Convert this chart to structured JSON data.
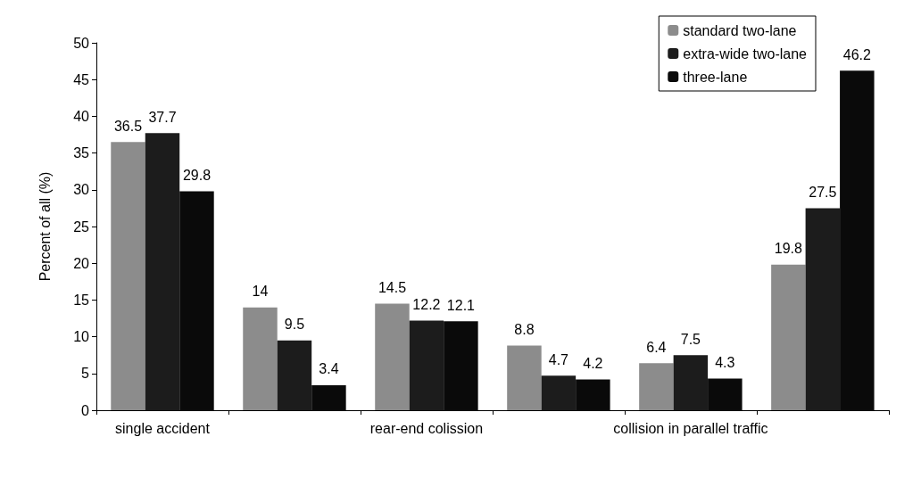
{
  "chart_data": {
    "type": "bar",
    "ylabel": "Percent of all (%)",
    "categories": [
      "single accident",
      null,
      "rear-end colission",
      null,
      "collision in parallel traffic",
      null
    ],
    "series": [
      {
        "name": "standard two-lane",
        "color": "#8c8c8c",
        "values": [
          36.5,
          14,
          14.5,
          8.8,
          6.4,
          19.8
        ]
      },
      {
        "name": "extra-wide two-lane",
        "color": "#1c1c1c",
        "values": [
          37.7,
          9.5,
          12.2,
          4.7,
          7.5,
          27.5
        ]
      },
      {
        "name": "three-lane",
        "color": "#0a0a0a",
        "values": [
          29.8,
          3.4,
          12.1,
          4.2,
          4.3,
          46.2
        ]
      }
    ],
    "ylim": [
      0,
      50
    ],
    "yticks": [
      0,
      5,
      10,
      15,
      20,
      25,
      30,
      35,
      40,
      45,
      50
    ],
    "grid": false,
    "legend": "top right",
    "data_labels": true
  }
}
